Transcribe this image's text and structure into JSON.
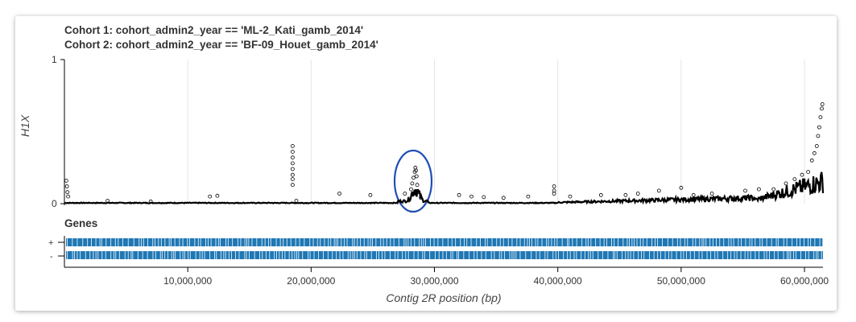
{
  "titles": {
    "line1": "Cohort 1: cohort_admin2_year == 'ML-2_Kati_gamb_2014'",
    "line2": "Cohort 2: cohort_admin2_year == 'BF-09_Houet_gamb_2014'"
  },
  "genes_panel": {
    "title": "Genes",
    "strand_plus": "+",
    "strand_minus": "-",
    "color": "#1f77b4"
  },
  "colors": {
    "points": "#000000",
    "grid": "#e5e5e5",
    "annotation_circle": "#1f4fb4"
  },
  "chart_data": {
    "type": "scatter",
    "title": "",
    "xlabel": "Contig 2R position (bp)",
    "ylabel": "H1X",
    "xlim": [
      0,
      61500000
    ],
    "ylim": [
      0,
      1
    ],
    "x_ticks": [
      10000000,
      20000000,
      30000000,
      40000000,
      50000000,
      60000000
    ],
    "x_tick_labels": [
      "10,000,000",
      "20,000,000",
      "30,000,000",
      "40,000,000",
      "50,000,000",
      "60,000,000"
    ],
    "y_ticks": [
      0,
      1
    ],
    "y_tick_labels": [
      "0",
      "1"
    ],
    "grid": "vertical",
    "marker": "open-circle",
    "series": [
      {
        "name": "",
        "points": [
          [
            150000,
            0.16
          ],
          [
            200000,
            0.12
          ],
          [
            250000,
            0.08
          ],
          [
            300000,
            0.05
          ],
          [
            3500000,
            0.02
          ],
          [
            7000000,
            0.015
          ],
          [
            11800000,
            0.05
          ],
          [
            12400000,
            0.055
          ],
          [
            18500000,
            0.4
          ],
          [
            18500000,
            0.36
          ],
          [
            18500000,
            0.32
          ],
          [
            18500000,
            0.28
          ],
          [
            18500000,
            0.24
          ],
          [
            18500000,
            0.2
          ],
          [
            18500000,
            0.17
          ],
          [
            18500000,
            0.13
          ],
          [
            18800000,
            0.02
          ],
          [
            22300000,
            0.07
          ],
          [
            24800000,
            0.06
          ],
          [
            27600000,
            0.07
          ],
          [
            28100000,
            0.1
          ],
          [
            28200000,
            0.14
          ],
          [
            28300000,
            0.18
          ],
          [
            28400000,
            0.22
          ],
          [
            28450000,
            0.25
          ],
          [
            28500000,
            0.23
          ],
          [
            28550000,
            0.19
          ],
          [
            28600000,
            0.13
          ],
          [
            28700000,
            0.08
          ],
          [
            28900000,
            0.04
          ],
          [
            32000000,
            0.06
          ],
          [
            33000000,
            0.05
          ],
          [
            34000000,
            0.045
          ],
          [
            35600000,
            0.04
          ],
          [
            37600000,
            0.05
          ],
          [
            39700000,
            0.12
          ],
          [
            39700000,
            0.09
          ],
          [
            39700000,
            0.07
          ],
          [
            41000000,
            0.05
          ],
          [
            43500000,
            0.06
          ],
          [
            45500000,
            0.06
          ],
          [
            46500000,
            0.07
          ],
          [
            48200000,
            0.09
          ],
          [
            50000000,
            0.11
          ],
          [
            51000000,
            0.06
          ],
          [
            52500000,
            0.07
          ],
          [
            55200000,
            0.09
          ],
          [
            56300000,
            0.1
          ],
          [
            57500000,
            0.1
          ],
          [
            58500000,
            0.14
          ],
          [
            59200000,
            0.17
          ],
          [
            59800000,
            0.2
          ],
          [
            60300000,
            0.22
          ],
          [
            60600000,
            0.3
          ],
          [
            60800000,
            0.35
          ],
          [
            61000000,
            0.4
          ],
          [
            61100000,
            0.47
          ],
          [
            61200000,
            0.53
          ],
          [
            61300000,
            0.6
          ],
          [
            61400000,
            0.66
          ],
          [
            61450000,
            0.69
          ]
        ]
      }
    ],
    "baseline_bands": [
      {
        "from": 0,
        "to": 61500000
      }
    ]
  }
}
